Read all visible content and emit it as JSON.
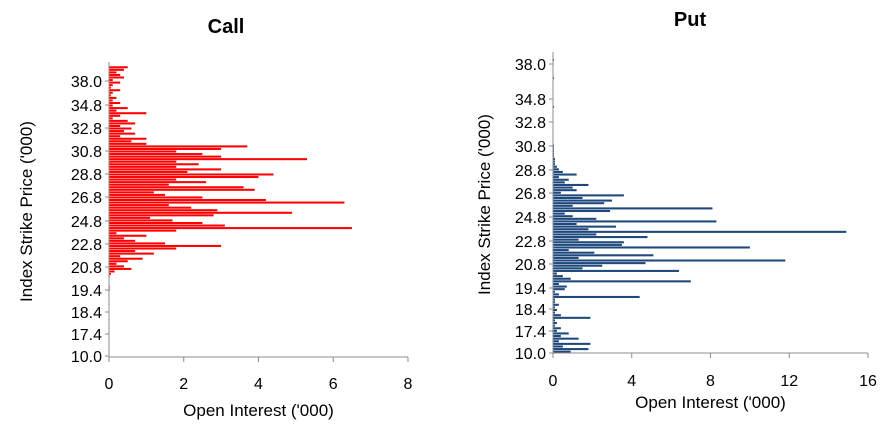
{
  "chart_data": [
    {
      "type": "bar",
      "orientation": "horizontal",
      "title": "Call",
      "xlabel": "Open Interest ('000)",
      "ylabel": "Index Strike Price ('000)",
      "xlim": [
        0,
        8
      ],
      "xticks": [
        "0",
        "2",
        "4",
        "6",
        "8"
      ],
      "yticks": [
        "10.0",
        "17.4",
        "18.4",
        "19.4",
        "20.8",
        "22.8",
        "24.8",
        "26.8",
        "28.8",
        "30.8",
        "32.8",
        "34.8",
        "38.0"
      ],
      "bar_color": "#ff0000",
      "values": [
        0.0,
        0.0,
        0.0,
        0.0,
        0.0,
        0.0,
        0.0,
        0.0,
        0.0,
        0.0,
        0.0,
        0.0,
        0.0,
        0.0,
        0.0,
        0.0,
        0.0,
        0.0,
        0.0,
        0.0,
        0.0,
        0.0,
        0.0,
        0.0,
        0.0,
        0.0,
        0.02,
        0.02,
        0.0,
        0.0,
        0.0,
        0.02,
        0.05,
        0.15,
        0.6,
        0.4,
        0.2,
        0.5,
        0.9,
        0.3,
        1.2,
        0.7,
        1.8,
        3.0,
        1.5,
        0.7,
        0.4,
        1.0,
        0.2,
        1.8,
        6.5,
        3.1,
        2.5,
        1.7,
        1.1,
        2.8,
        4.9,
        2.9,
        2.2,
        1.6,
        6.3,
        4.2,
        2.5,
        1.5,
        1.2,
        3.9,
        3.6,
        1.6,
        2.6,
        1.8,
        4.0,
        4.4,
        2.1,
        3.0,
        1.8,
        2.4,
        1.8,
        5.3,
        3.0,
        2.5,
        1.8,
        3.0,
        3.7,
        1.0,
        0.6,
        1.0,
        0.3,
        0.7,
        0.4,
        0.6,
        0.3,
        0.7,
        0.5,
        0.1,
        0.3,
        1.0,
        0.2,
        0.5,
        0.1,
        0.3,
        0.1,
        0.2,
        0.05,
        0.1,
        0.3,
        0.05,
        0.1,
        0.3,
        0.1,
        0.4,
        0.3,
        0.2,
        0.4,
        0.5
      ]
    },
    {
      "type": "bar",
      "orientation": "horizontal",
      "title": "Put",
      "xlabel": "Open Interest ('000)",
      "ylabel": "Index Strike Price ('000)",
      "xlim": [
        0,
        16
      ],
      "xticks": [
        "0",
        "4",
        "8",
        "12",
        "16"
      ],
      "yticks": [
        "10.0",
        "17.4",
        "18.4",
        "19.4",
        "20.8",
        "22.8",
        "24.8",
        "26.8",
        "28.8",
        "30.8",
        "32.8",
        "34.8",
        "38.0"
      ],
      "bar_color": "#1f497d",
      "values": [
        0.9,
        1.8,
        0.5,
        1.9,
        0.3,
        1.3,
        0.4,
        0.8,
        0.2,
        0.4,
        0.1,
        0.2,
        0.1,
        1.9,
        0.4,
        0.1,
        0.2,
        0.1,
        0.3,
        0.1,
        0.1,
        4.4,
        0.3,
        0.1,
        0.6,
        0.7,
        0.3,
        7.0,
        0.9,
        0.5,
        0.2,
        6.4,
        1.5,
        2.5,
        4.7,
        11.8,
        1.3,
        5.1,
        2.1,
        0.8,
        10.0,
        3.5,
        3.6,
        1.3,
        4.8,
        2.2,
        14.9,
        1.8,
        3.2,
        1.2,
        8.3,
        2.2,
        1.0,
        0.6,
        2.9,
        8.1,
        1.0,
        2.6,
        3.0,
        1.5,
        3.6,
        0.4,
        1.2,
        1.0,
        1.8,
        0.6,
        0.8,
        0.3,
        1.2,
        0.5,
        0.3,
        0.2,
        0.1,
        0.1,
        0.1,
        0.05,
        0.05,
        0.05,
        0.05,
        0.05,
        0.0,
        0.0,
        0.0,
        0.0,
        0.0,
        0.0,
        0.0,
        0.0,
        0.0,
        0.0,
        0.0,
        0.0,
        0.0,
        0.0,
        0.05,
        0.0,
        0.0,
        0.0,
        0.0,
        0.0,
        0.0,
        0.0,
        0.0,
        0.0,
        0.0,
        0.05,
        0.0,
        0.0,
        0.0,
        0.0,
        0.0,
        0.0,
        0.05,
        0.0
      ]
    }
  ]
}
